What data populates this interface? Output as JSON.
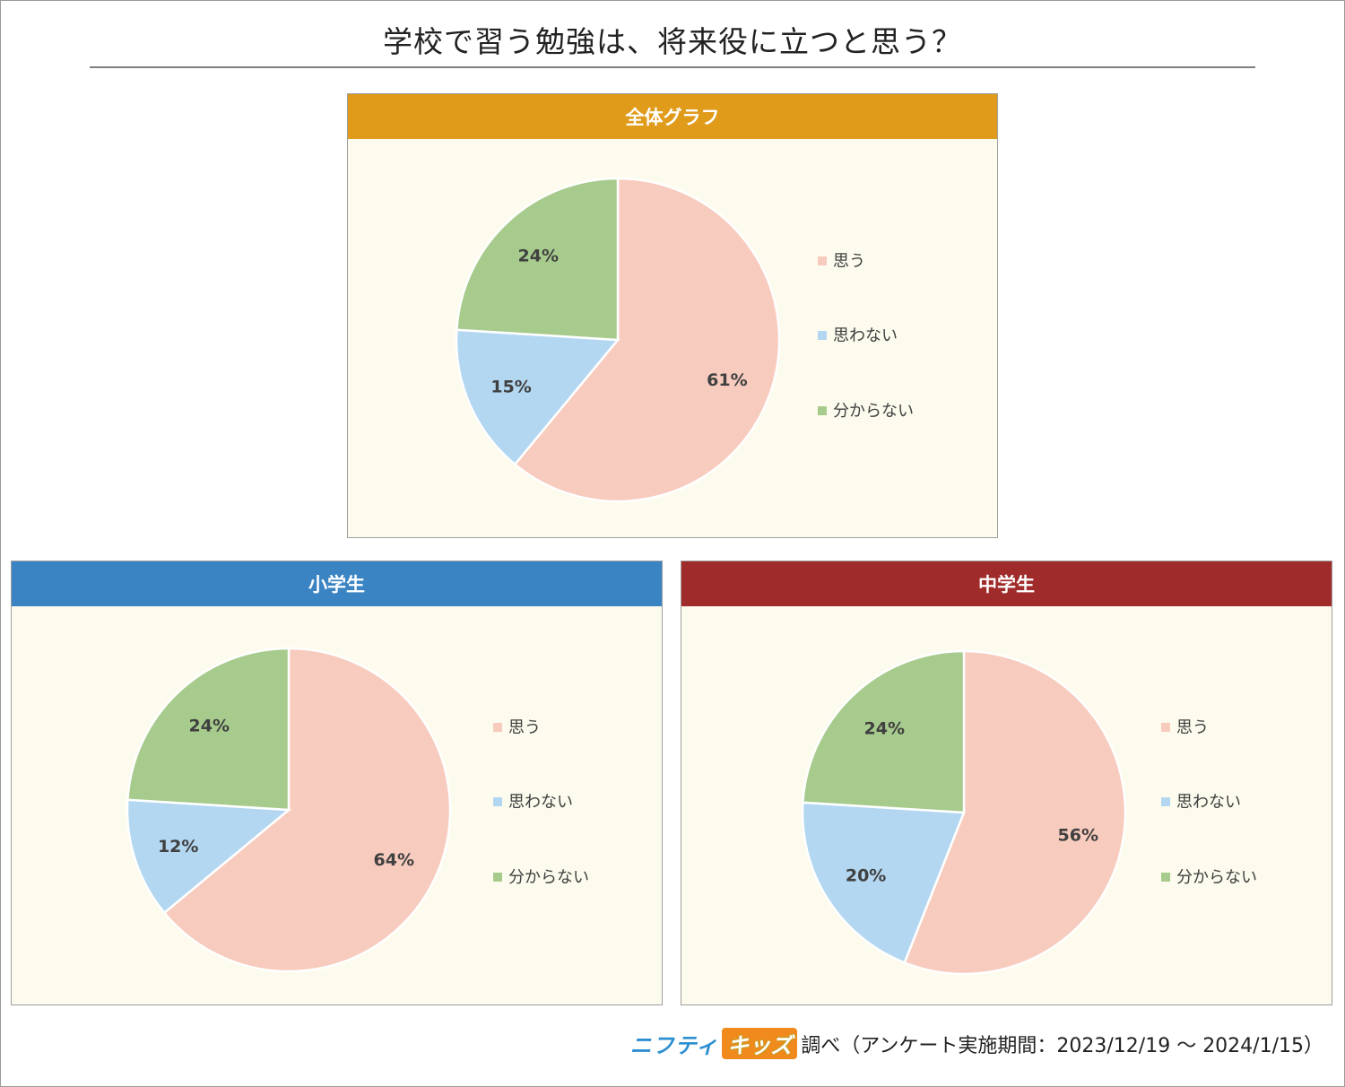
{
  "title": "学校で習う勉強は、将来役に立つと思う？",
  "colors": {
    "agree": "#f7cbbd",
    "disagree": "#b3d7f1",
    "unknown": "#a7cb8d",
    "header_overall": "#e09b1a",
    "header_elementary": "#3a84c4",
    "header_junior": "#a02b2b"
  },
  "legend": [
    "思う",
    "思わない",
    "分からない"
  ],
  "chart_data": [
    {
      "type": "pie",
      "title": "全体グラフ",
      "categories": [
        "思う",
        "思わない",
        "分からない"
      ],
      "values": [
        61,
        15,
        24
      ],
      "labels": [
        "61%",
        "15%",
        "24%"
      ]
    },
    {
      "type": "pie",
      "title": "小学生",
      "categories": [
        "思う",
        "思わない",
        "分からない"
      ],
      "values": [
        64,
        12,
        24
      ],
      "labels": [
        "64%",
        "12%",
        "24%"
      ]
    },
    {
      "type": "pie",
      "title": "中学生",
      "categories": [
        "思う",
        "思わない",
        "分からない"
      ],
      "values": [
        56,
        20,
        24
      ],
      "labels": [
        "56%",
        "20%",
        "24%"
      ]
    }
  ],
  "footer": {
    "brand_part1": "ニフティ",
    "brand_part2": "キッズ",
    "text": "調べ（アンケート実施期間：2023/12/19 ～ 2024/1/15）"
  }
}
